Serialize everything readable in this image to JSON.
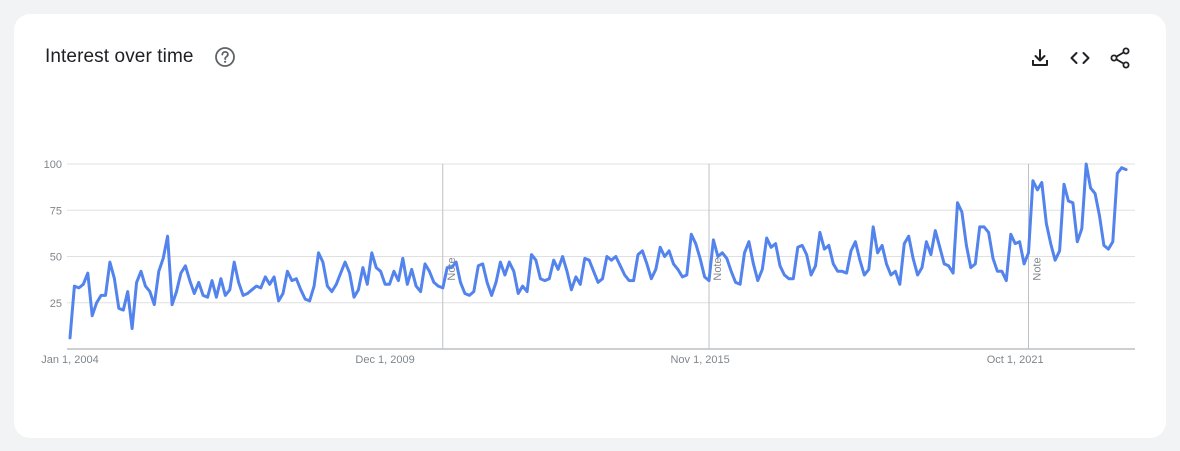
{
  "card": {
    "title": "Interest over time",
    "icons": {
      "help": "help-circle-icon",
      "download": "download-icon",
      "embed": "code-embed-icon",
      "share": "share-icon"
    }
  },
  "colors": {
    "line": "#5383ec",
    "grid": "#e0e0e0",
    "axis": "#9aa0a6",
    "text": "#202124",
    "muted": "#80868b"
  },
  "chart_data": {
    "type": "line",
    "title": "Interest over time",
    "xlabel": "",
    "ylabel": "",
    "ylim": [
      0,
      100
    ],
    "grid": true,
    "y_ticks": [
      {
        "value": 25,
        "label": "25"
      },
      {
        "value": 50,
        "label": "50"
      },
      {
        "value": 75,
        "label": "75"
      },
      {
        "value": 100,
        "label": "100"
      }
    ],
    "x_ticks": [
      {
        "date": "2004-01",
        "label": "Jan 1, 2004"
      },
      {
        "date": "2009-12",
        "label": "Dec 1, 2009"
      },
      {
        "date": "2015-11",
        "label": "Nov 1, 2015"
      },
      {
        "date": "2021-10",
        "label": "Oct 1, 2021"
      }
    ],
    "notes": [
      {
        "date": "2011-01",
        "label": "Note"
      },
      {
        "date": "2016-01",
        "label": "Note"
      },
      {
        "date": "2022-01",
        "label": "Note"
      }
    ],
    "series": [
      {
        "start": "2004-01",
        "frequency": "monthly",
        "values": [
          6,
          34,
          33,
          35,
          41,
          18,
          25,
          29,
          29,
          47,
          38,
          22,
          21,
          31,
          11,
          36,
          42,
          34,
          31,
          24,
          42,
          49,
          61,
          24,
          31,
          41,
          45,
          37,
          30,
          36,
          29,
          28,
          37,
          28,
          38,
          29,
          32,
          47,
          36,
          29,
          30,
          32,
          34,
          33,
          39,
          35,
          39,
          26,
          30,
          42,
          37,
          38,
          32,
          27,
          26,
          34,
          52,
          47,
          34,
          31,
          35,
          41,
          47,
          41,
          28,
          32,
          44,
          35,
          52,
          44,
          42,
          35,
          35,
          42,
          37,
          49,
          35,
          43,
          34,
          31,
          46,
          42,
          36,
          34,
          33,
          44,
          44,
          47,
          36,
          30,
          29,
          31,
          45,
          46,
          36,
          29,
          36,
          47,
          40,
          47,
          42,
          30,
          34,
          31,
          51,
          48,
          38,
          37,
          38,
          48,
          43,
          50,
          42,
          32,
          39,
          35,
          49,
          48,
          42,
          36,
          38,
          50,
          48,
          50,
          45,
          40,
          37,
          37,
          51,
          53,
          46,
          38,
          43,
          55,
          50,
          53,
          46,
          43,
          39,
          40,
          62,
          57,
          49,
          39,
          37,
          59,
          50,
          52,
          49,
          42,
          36,
          35,
          52,
          58,
          46,
          37,
          43,
          60,
          55,
          57,
          45,
          40,
          38,
          38,
          55,
          56,
          51,
          40,
          45,
          63,
          54,
          56,
          46,
          42,
          42,
          41,
          53,
          58,
          48,
          40,
          43,
          66,
          52,
          56,
          46,
          40,
          42,
          35,
          57,
          61,
          49,
          40,
          44,
          58,
          51,
          64,
          55,
          46,
          45,
          41,
          79,
          74,
          56,
          44,
          46,
          66,
          66,
          63,
          49,
          42,
          42,
          37,
          62,
          57,
          58,
          46,
          52,
          91,
          86,
          90,
          68,
          57,
          48,
          53,
          89,
          80,
          79,
          58,
          65,
          100,
          87,
          84,
          72,
          56,
          54,
          58,
          95,
          98,
          97
        ]
      }
    ]
  }
}
